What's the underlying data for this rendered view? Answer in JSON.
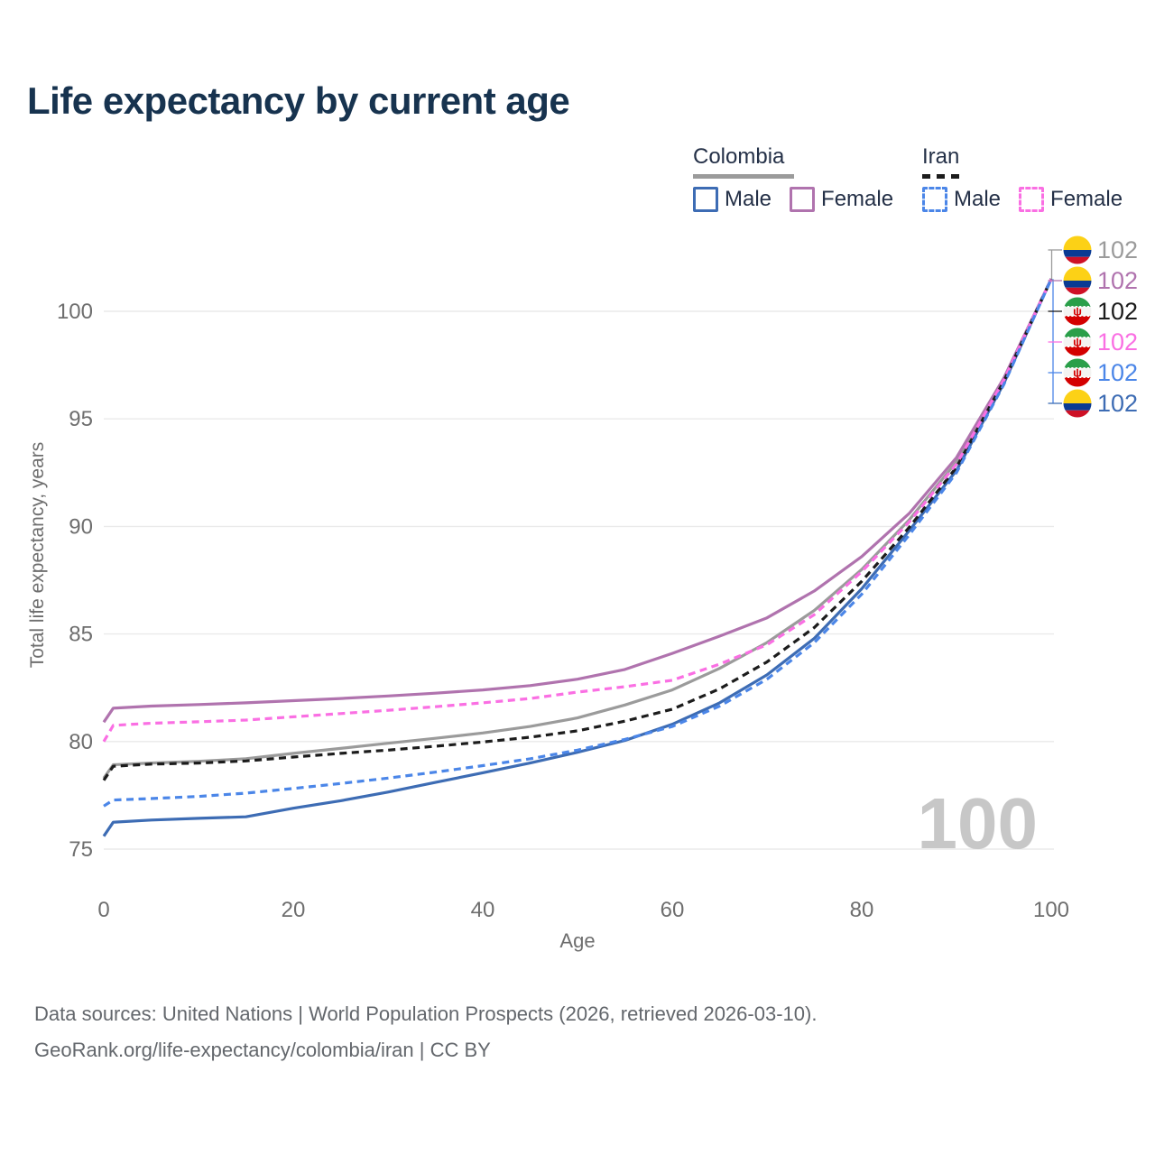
{
  "title": "Life expectancy by current age",
  "legend": {
    "colombia": {
      "name": "Colombia",
      "male": "Male",
      "female": "Female"
    },
    "iran": {
      "name": "Iran",
      "male": "Male",
      "female": "Female"
    }
  },
  "chart_data": {
    "type": "line",
    "title": "Life expectancy by current age",
    "xlabel": "Age",
    "ylabel": "Total life expectancy, years",
    "xlim": [
      0,
      100
    ],
    "ylim": [
      75,
      102.5
    ],
    "xticks": [
      "0",
      "20",
      "40",
      "60",
      "80",
      "100"
    ],
    "yticks": [
      "75",
      "80",
      "85",
      "90",
      "95",
      "100"
    ],
    "grid": "horizontal-only",
    "legend_position": "top-right",
    "age_watermark": "100",
    "x": [
      0,
      1,
      5,
      10,
      15,
      20,
      25,
      30,
      35,
      40,
      45,
      50,
      55,
      60,
      65,
      70,
      75,
      80,
      85,
      90,
      95,
      100
    ],
    "series": [
      {
        "id": "colombia_both",
        "name": "Colombia — Both sexes",
        "country": "Colombia",
        "sex": "Both",
        "flag": "colombia",
        "color": "#9b9b9b",
        "dashed": false,
        "end_label": "102",
        "values": [
          78.3,
          78.92,
          79.0,
          79.08,
          79.2,
          79.45,
          79.68,
          79.92,
          80.15,
          80.4,
          80.7,
          81.1,
          81.7,
          82.4,
          83.4,
          84.6,
          86.1,
          88.0,
          90.3,
          93.0,
          96.85,
          101.5
        ]
      },
      {
        "id": "colombia_female",
        "name": "Colombia — Female",
        "country": "Colombia",
        "sex": "Female",
        "flag": "colombia",
        "color": "#b073ae",
        "dashed": false,
        "end_label": "102",
        "values": [
          80.9,
          81.55,
          81.65,
          81.72,
          81.8,
          81.9,
          82.0,
          82.12,
          82.25,
          82.4,
          82.6,
          82.9,
          83.35,
          84.1,
          84.9,
          85.75,
          87.0,
          88.6,
          90.6,
          93.2,
          96.9,
          101.5
        ]
      },
      {
        "id": "colombia_male",
        "name": "Colombia — Male",
        "country": "Colombia",
        "sex": "Male",
        "flag": "colombia",
        "color": "#3d6cb4",
        "dashed": false,
        "end_label": "102",
        "values": [
          75.6,
          76.25,
          76.35,
          76.43,
          76.5,
          76.9,
          77.25,
          77.65,
          78.1,
          78.55,
          79.0,
          79.5,
          80.05,
          80.8,
          81.8,
          83.1,
          84.8,
          87.1,
          89.8,
          92.6,
          96.65,
          101.5
        ]
      },
      {
        "id": "iran_both",
        "name": "Iran — Both sexes",
        "country": "Iran",
        "sex": "Both",
        "flag": "iran",
        "color": "#1c1c1c",
        "dashed": true,
        "end_label": "102",
        "values": [
          78.2,
          78.85,
          78.95,
          79.0,
          79.1,
          79.28,
          79.45,
          79.6,
          79.78,
          79.98,
          80.2,
          80.5,
          80.95,
          81.5,
          82.45,
          83.7,
          85.3,
          87.45,
          89.95,
          92.75,
          96.75,
          101.5
        ]
      },
      {
        "id": "iran_female",
        "name": "Iran — Female",
        "country": "Iran",
        "sex": "Female",
        "flag": "iran",
        "color": "#fa6fe3",
        "dashed": true,
        "end_label": "102",
        "values": [
          80.0,
          80.75,
          80.85,
          80.92,
          81.0,
          81.15,
          81.3,
          81.45,
          81.62,
          81.8,
          82.0,
          82.3,
          82.55,
          82.85,
          83.6,
          84.5,
          85.9,
          87.9,
          90.2,
          92.9,
          96.8,
          101.5
        ]
      },
      {
        "id": "iran_male",
        "name": "Iran — Male",
        "country": "Iran",
        "sex": "Male",
        "flag": "iran",
        "color": "#4b86e8",
        "dashed": true,
        "end_label": "102",
        "values": [
          77.0,
          77.28,
          77.35,
          77.45,
          77.6,
          77.82,
          78.05,
          78.3,
          78.58,
          78.88,
          79.2,
          79.6,
          80.1,
          80.7,
          81.65,
          82.9,
          84.6,
          86.85,
          89.6,
          92.5,
          96.6,
          101.5
        ]
      }
    ],
    "end_label_order": [
      "colombia_both",
      "colombia_female",
      "iran_both",
      "iran_female",
      "iran_male",
      "colombia_male"
    ],
    "flag_colors": {
      "colombia": {
        "yellow": "#FCD116",
        "blue": "#0a3a93",
        "red": "#CE1126"
      },
      "iran": {
        "green": "#2a9f49",
        "white": "#f4f4f2",
        "red": "#d40000",
        "emblem": "#d40000"
      }
    }
  },
  "footer": {
    "line1": "Data sources: United Nations | World Population Prospects (2026, retrieved 2026-03-10).",
    "line2": "GeoRank.org/life-expectancy/colombia/iran | CC BY"
  }
}
